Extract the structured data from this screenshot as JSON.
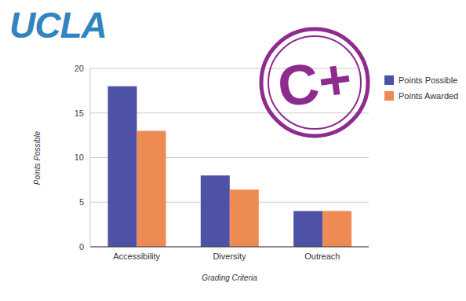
{
  "chart_data": {
    "type": "bar",
    "logo": "UCLA",
    "stamp": "C+",
    "x_label": "Grading Criteria",
    "y_label": "Points Possible",
    "categories": [
      "Accessibility",
      "Diversity",
      "Outreach"
    ],
    "series": [
      {
        "name": "Points Possible",
        "color": "#4e52a6",
        "values": [
          18,
          8,
          4
        ]
      },
      {
        "name": "Points Awarded",
        "color": "#ee8a54",
        "values": [
          13,
          6.4,
          4
        ]
      }
    ],
    "ylim": [
      0,
      20
    ],
    "yticks": [
      0,
      5,
      10,
      15,
      20
    ],
    "grid": true,
    "legend": "right"
  }
}
